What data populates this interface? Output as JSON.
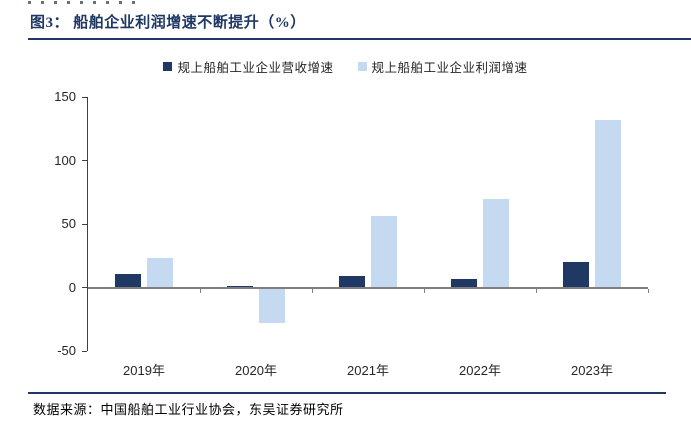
{
  "page": {
    "figure_title": "图3：  船舶企业利润增速不断提升（%）",
    "source": "数据来源：中国船舶工业行业协会，东吴证券研究所"
  },
  "colors": {
    "accent_navy": "#1F3864",
    "rule_navy": "#1F3864",
    "series_revenue": "#1F3864",
    "series_profit": "#C5D9F1",
    "axis_line": "#404040",
    "zero_line": "#7F7F7F",
    "tick_color": "#595959"
  },
  "chart_data": {
    "type": "bar",
    "title": "船舶企业利润增速不断提升（%）",
    "categories": [
      "2019年",
      "2020年",
      "2021年",
      "2022年",
      "2023年"
    ],
    "series": [
      {
        "name": "规上船舶工业企业营收增速",
        "color": "#1F3864",
        "values": [
          11,
          1,
          9,
          7,
          20
        ]
      },
      {
        "name": "规上船舶工业企业利润增速",
        "color": "#C5D9F1",
        "values": [
          23,
          -27,
          56,
          70,
          132
        ]
      }
    ],
    "y_ticks": [
      150,
      100,
      50,
      0,
      -50
    ],
    "ylim": [
      -50,
      150
    ],
    "grid": false,
    "legend_position": "top"
  }
}
